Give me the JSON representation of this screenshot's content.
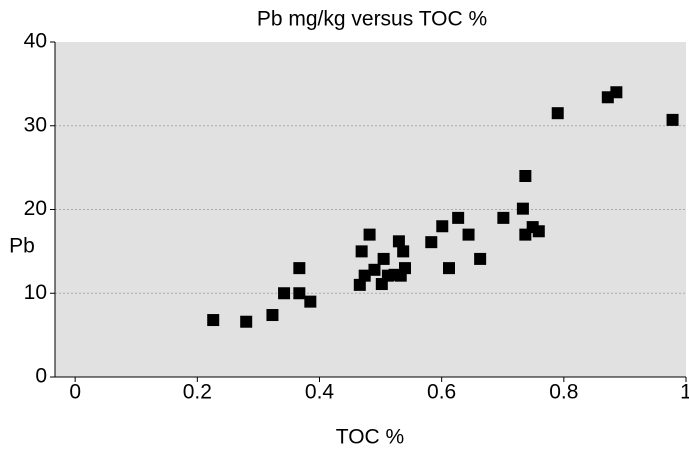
{
  "chart_data": {
    "type": "scatter",
    "title": "Pb mg/kg versus TOC %",
    "x_label": "TOC %",
    "y_label": "Pb",
    "color": "#000000",
    "grid": true,
    "xlim": [
      -0.033,
      1
    ],
    "xticks": [
      0,
      0.2,
      0.4,
      0.6,
      0.8,
      1
    ],
    "ylim": [
      0,
      40
    ],
    "yticks": [
      0,
      10,
      20,
      30,
      40
    ],
    "x": [
      0.226,
      0.28,
      0.323,
      0.342,
      0.367,
      0.367,
      0.385,
      0.466,
      0.469,
      0.474,
      0.482,
      0.49,
      0.502,
      0.505,
      0.512,
      0.523,
      0.53,
      0.533,
      0.537,
      0.54,
      0.583,
      0.601,
      0.612,
      0.627,
      0.644,
      0.663,
      0.701,
      0.733,
      0.737,
      0.737,
      0.749,
      0.759,
      0.79,
      0.872,
      0.886,
      0.978
    ],
    "values": [
      6.8,
      6.6,
      7.4,
      10.0,
      13.0,
      10.0,
      9.0,
      11.0,
      15.0,
      12.1,
      17.0,
      12.8,
      11.1,
      14.1,
      12.1,
      12.2,
      16.2,
      12.1,
      15.0,
      13.0,
      16.1,
      18.0,
      13.0,
      19.0,
      17.0,
      14.1,
      19.0,
      20.1,
      24.0,
      17.0,
      17.9,
      17.4,
      31.5,
      33.4,
      34.0,
      30.7
    ]
  }
}
